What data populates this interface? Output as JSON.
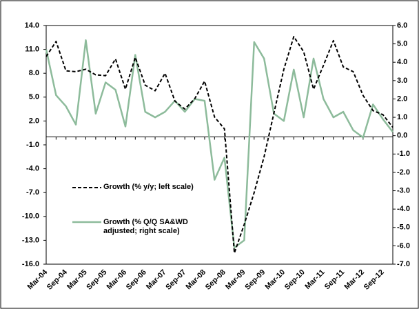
{
  "chart_data": {
    "type": "line",
    "categories": [
      "Mar-04",
      null,
      "Sep-04",
      null,
      "Mar-05",
      null,
      "Sep-05",
      null,
      "Mar-06",
      null,
      "Sep-06",
      null,
      "Mar-07",
      null,
      "Sep-07",
      null,
      "Mar-08",
      null,
      "Sep-08",
      null,
      "Mar-09",
      null,
      "Sep-09",
      null,
      "Mar-10",
      null,
      "Sep-10",
      null,
      "Mar-11",
      null,
      "Sep-11",
      null,
      "Mar-12",
      null,
      "Sep-12",
      null
    ],
    "series": [
      {
        "name": "Growth (% y/y; left scale)",
        "color": "#000000",
        "dash": true,
        "axis": "y",
        "values": [
          10.1,
          12.0,
          8.3,
          8.2,
          8.5,
          7.8,
          7.7,
          9.8,
          6.0,
          10.0,
          6.5,
          5.8,
          8.0,
          4.5,
          3.5,
          4.8,
          7.0,
          2.5,
          1.0,
          -14.6,
          -11.0,
          -7.0,
          -2.5,
          3.0,
          8.5,
          12.6,
          10.7,
          6.0,
          9.0,
          12.1,
          8.8,
          8.2,
          5.2,
          3.3,
          2.8,
          1.2
        ]
      },
      {
        "name": "Growth (% Q/Q SA&WD adjusted; right scale)",
        "color": "#8dbb9b",
        "dash": false,
        "axis": "y2",
        "values": [
          4.7,
          2.2,
          1.6,
          0.6,
          5.2,
          1.2,
          2.9,
          2.5,
          0.5,
          4.4,
          1.3,
          1.0,
          1.3,
          1.9,
          1.3,
          2.0,
          1.9,
          -2.4,
          -1.2,
          -6.1,
          -5.7,
          5.1,
          4.2,
          1.2,
          0.8,
          3.6,
          1.0,
          4.2,
          2.0,
          1.0,
          1.3,
          0.3,
          -0.1,
          1.7,
          0.9,
          0.2
        ]
      }
    ],
    "ylim": [
      -16,
      14
    ],
    "yticks": [
      {
        "value": -16,
        "label": "-16.0"
      },
      {
        "value": -13,
        "label": "-13.0"
      },
      {
        "value": -10,
        "label": "-10.0"
      },
      {
        "value": -7,
        "label": "-7.0"
      },
      {
        "value": -4,
        "label": "-4.0"
      },
      {
        "value": -1,
        "label": "-1.0"
      },
      {
        "value": 2,
        "label": "2.0"
      },
      {
        "value": 5,
        "label": "5.0"
      },
      {
        "value": 8,
        "label": "8.0"
      },
      {
        "value": 11,
        "label": "11.0"
      },
      {
        "value": 14,
        "label": "14.0"
      }
    ],
    "y2lim": [
      -7,
      6
    ],
    "y2ticks": [
      {
        "value": -7,
        "label": "-7.0"
      },
      {
        "value": -6,
        "label": "-6.0"
      },
      {
        "value": -5,
        "label": "-5.0"
      },
      {
        "value": -4,
        "label": "-4.0"
      },
      {
        "value": -3,
        "label": "-3.0"
      },
      {
        "value": -2,
        "label": "-2.0"
      },
      {
        "value": -1,
        "label": "-1.0"
      },
      {
        "value": 0,
        "label": "0.0"
      },
      {
        "value": 1,
        "label": "1.0"
      },
      {
        "value": 2,
        "label": "2.0"
      },
      {
        "value": 3,
        "label": "3.0"
      },
      {
        "value": 4,
        "label": "4.0"
      },
      {
        "value": 5,
        "label": "5.0"
      },
      {
        "value": 6,
        "label": "6.0"
      }
    ],
    "grid": false
  }
}
